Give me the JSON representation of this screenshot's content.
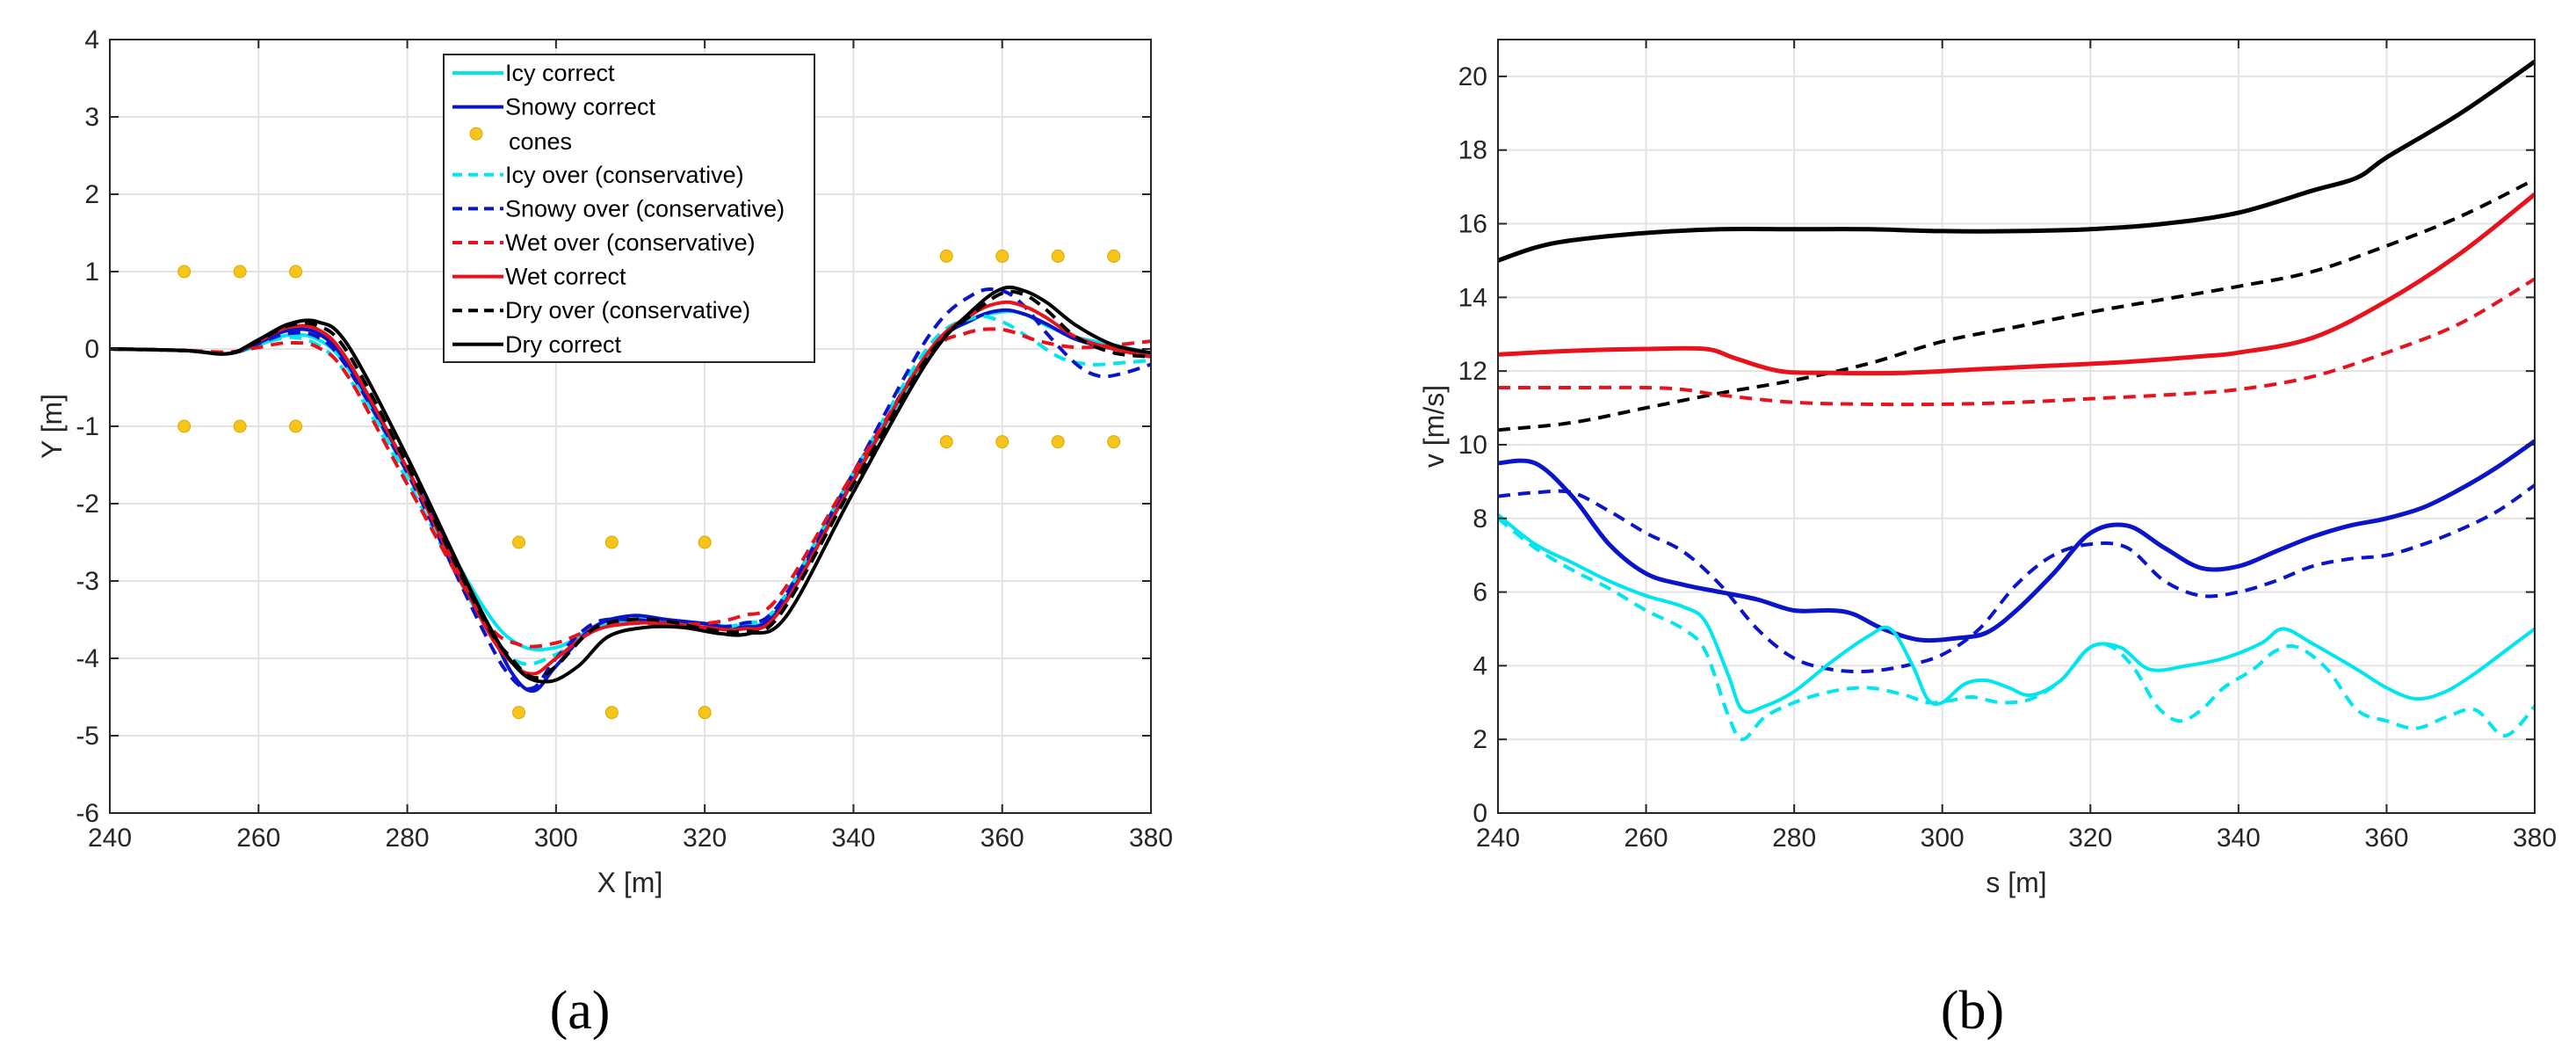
{
  "chart_data": [
    {
      "type": "line",
      "title": "",
      "caption": "(a)",
      "xlabel": "X [m]",
      "ylabel": "Y [m]",
      "xlim": [
        240,
        380
      ],
      "ylim": [
        -6,
        4
      ],
      "xticks": [
        240,
        260,
        280,
        300,
        320,
        340,
        360,
        380
      ],
      "yticks": [
        -6,
        -5,
        -4,
        -3,
        -2,
        -1,
        0,
        1,
        2,
        3,
        4
      ],
      "grid": true,
      "legend_position": "top-center",
      "series": [
        {
          "name": "Icy correct",
          "color": "#00e5ee",
          "dash": "solid",
          "width": 4,
          "x": [
            240,
            250,
            256,
            260,
            264,
            268,
            272,
            280,
            290,
            295,
            300,
            305,
            310,
            315,
            320,
            325,
            330,
            340,
            350,
            355,
            360,
            363,
            366,
            370,
            375,
            380
          ],
          "y": [
            0,
            -0.02,
            -0.06,
            0.05,
            0.18,
            0.12,
            -0.25,
            -1.6,
            -3.3,
            -3.82,
            -3.86,
            -3.62,
            -3.5,
            -3.52,
            -3.55,
            -3.58,
            -3.35,
            -1.7,
            -0.1,
            0.35,
            0.48,
            0.45,
            0.3,
            0.15,
            0.05,
            -0.05
          ]
        },
        {
          "name": "Snowy correct",
          "color": "#0a14c8",
          "dash": "solid",
          "width": 4,
          "x": [
            240,
            250,
            256,
            260,
            264,
            268,
            272,
            280,
            290,
            294,
            297,
            300,
            305,
            310,
            315,
            320,
            325,
            330,
            340,
            350,
            356,
            360,
            363,
            366,
            370,
            375,
            380
          ],
          "y": [
            0,
            -0.02,
            -0.06,
            0.08,
            0.24,
            0.2,
            -0.2,
            -1.55,
            -3.4,
            -4.18,
            -4.42,
            -4.1,
            -3.6,
            -3.45,
            -3.5,
            -3.55,
            -3.6,
            -3.35,
            -1.65,
            -0.05,
            0.38,
            0.5,
            0.45,
            0.32,
            0.12,
            0.0,
            -0.1
          ]
        },
        {
          "name": "cones",
          "color": "#f7c51a",
          "dash": "dots",
          "width": 0,
          "x": [
            250,
            257.5,
            265,
            250,
            257.5,
            265,
            295,
            307.5,
            320,
            295,
            307.5,
            320,
            352.5,
            360,
            367.5,
            375,
            352.5,
            360,
            367.5,
            375
          ],
          "y": [
            1,
            1,
            1,
            -1,
            -1,
            -1,
            -2.5,
            -2.5,
            -2.5,
            -4.7,
            -4.7,
            -4.7,
            1.2,
            1.2,
            1.2,
            1.2,
            -1.2,
            -1.2,
            -1.2,
            -1.2
          ]
        },
        {
          "name": "Icy over (conservative)",
          "color": "#00e5ee",
          "dash": "dashed",
          "width": 4,
          "x": [
            240,
            250,
            256,
            260,
            264,
            268,
            272,
            280,
            290,
            295,
            300,
            305,
            310,
            315,
            320,
            325,
            330,
            340,
            350,
            356,
            360,
            364,
            368,
            372,
            376,
            380
          ],
          "y": [
            0,
            -0.02,
            -0.05,
            0.05,
            0.15,
            0.05,
            -0.35,
            -1.7,
            -3.5,
            -4.05,
            -3.95,
            -3.65,
            -3.52,
            -3.55,
            -3.62,
            -3.55,
            -3.3,
            -1.6,
            0.02,
            0.4,
            0.35,
            0.12,
            -0.12,
            -0.2,
            -0.18,
            -0.15
          ]
        },
        {
          "name": "Snowy over (conservative)",
          "color": "#0a14c8",
          "dash": "dashed",
          "width": 4,
          "x": [
            240,
            250,
            256,
            260,
            264,
            268,
            272,
            280,
            290,
            294,
            297,
            300,
            305,
            310,
            315,
            320,
            325,
            330,
            340,
            350,
            356,
            360,
            363,
            366,
            370,
            373,
            376,
            380
          ],
          "y": [
            0,
            -0.02,
            -0.06,
            0.07,
            0.2,
            0.15,
            -0.25,
            -1.6,
            -3.6,
            -4.25,
            -4.38,
            -4.0,
            -3.55,
            -3.5,
            -3.55,
            -3.6,
            -3.55,
            -3.3,
            -1.6,
            0.15,
            0.7,
            0.75,
            0.55,
            0.2,
            -0.2,
            -0.35,
            -0.32,
            -0.2
          ]
        },
        {
          "name": "Wet over (conservative)",
          "color": "#e8121c",
          "dash": "dashed",
          "width": 4,
          "x": [
            240,
            250,
            256,
            260,
            264,
            268,
            272,
            280,
            290,
            295,
            300,
            305,
            310,
            315,
            320,
            325,
            330,
            340,
            350,
            355,
            360,
            365,
            370,
            375,
            380
          ],
          "y": [
            0,
            -0.02,
            -0.04,
            0.02,
            0.08,
            0.02,
            -0.35,
            -1.75,
            -3.45,
            -3.82,
            -3.8,
            -3.62,
            -3.55,
            -3.55,
            -3.55,
            -3.45,
            -3.2,
            -1.6,
            -0.1,
            0.2,
            0.25,
            0.1,
            0.02,
            0.05,
            0.1
          ]
        },
        {
          "name": "Wet correct",
          "color": "#e8121c",
          "dash": "solid",
          "width": 4,
          "x": [
            240,
            250,
            256,
            260,
            264,
            268,
            272,
            280,
            290,
            294,
            297,
            300,
            305,
            310,
            315,
            320,
            325,
            330,
            340,
            350,
            356,
            360,
            363,
            366,
            370,
            375,
            380
          ],
          "y": [
            0,
            -0.02,
            -0.06,
            0.1,
            0.28,
            0.25,
            -0.15,
            -1.55,
            -3.5,
            -4.05,
            -4.2,
            -4.0,
            -3.65,
            -3.55,
            -3.55,
            -3.6,
            -3.62,
            -3.4,
            -1.7,
            -0.05,
            0.45,
            0.6,
            0.55,
            0.4,
            0.15,
            0.0,
            -0.1
          ]
        },
        {
          "name": "Dry over (conservative)",
          "color": "#000000",
          "dash": "dashed",
          "width": 4,
          "x": [
            240,
            250,
            256,
            260,
            264,
            268,
            272,
            280,
            290,
            294,
            297,
            300,
            305,
            310,
            315,
            320,
            325,
            330,
            340,
            350,
            356,
            360,
            363,
            366,
            370,
            375,
            380
          ],
          "y": [
            0,
            -0.02,
            -0.06,
            0.1,
            0.3,
            0.3,
            -0.05,
            -1.5,
            -3.45,
            -4.0,
            -4.25,
            -4.1,
            -3.62,
            -3.5,
            -3.52,
            -3.62,
            -3.65,
            -3.45,
            -1.75,
            -0.1,
            0.45,
            0.72,
            0.7,
            0.5,
            0.15,
            -0.05,
            -0.1
          ]
        },
        {
          "name": "Dry correct",
          "color": "#000000",
          "dash": "solid",
          "width": 4,
          "x": [
            240,
            250,
            256,
            260,
            264,
            268,
            272,
            280,
            290,
            295,
            299,
            303,
            307,
            312,
            317,
            322,
            326,
            331,
            340,
            350,
            356,
            360,
            363,
            366,
            370,
            375,
            380
          ],
          "y": [
            0,
            -0.02,
            -0.06,
            0.12,
            0.32,
            0.35,
            0.05,
            -1.4,
            -3.4,
            -4.15,
            -4.3,
            -4.1,
            -3.72,
            -3.6,
            -3.6,
            -3.68,
            -3.68,
            -3.45,
            -1.85,
            -0.15,
            0.5,
            0.78,
            0.75,
            0.6,
            0.3,
            0.05,
            -0.05
          ]
        }
      ]
    },
    {
      "type": "line",
      "title": "",
      "caption": "(b)",
      "xlabel": "s [m]",
      "ylabel": "v [m/s]",
      "xlim": [
        240,
        380
      ],
      "ylim": [
        0,
        21
      ],
      "xticks": [
        240,
        260,
        280,
        300,
        320,
        340,
        360,
        380
      ],
      "yticks": [
        0,
        2,
        4,
        6,
        8,
        10,
        12,
        14,
        16,
        18,
        20
      ],
      "grid": true,
      "legend_position": "none",
      "series": [
        {
          "name": "Dry correct",
          "color": "#000000",
          "dash": "solid",
          "width": 5,
          "x": [
            240,
            245,
            250,
            260,
            270,
            280,
            290,
            300,
            310,
            320,
            330,
            340,
            350,
            356,
            360,
            370,
            380
          ],
          "y": [
            15.0,
            15.35,
            15.55,
            15.75,
            15.85,
            15.85,
            15.85,
            15.8,
            15.8,
            15.85,
            16.0,
            16.3,
            16.9,
            17.25,
            17.8,
            19.0,
            20.4
          ]
        },
        {
          "name": "Dry over (conservative)",
          "color": "#000000",
          "dash": "dashed",
          "width": 4,
          "x": [
            240,
            250,
            260,
            270,
            280,
            290,
            300,
            310,
            320,
            330,
            340,
            350,
            360,
            370,
            380
          ],
          "y": [
            10.4,
            10.6,
            11.0,
            11.4,
            11.75,
            12.2,
            12.8,
            13.2,
            13.6,
            13.95,
            14.3,
            14.7,
            15.4,
            16.2,
            17.2
          ]
        },
        {
          "name": "Wet correct",
          "color": "#e8121c",
          "dash": "solid",
          "width": 5,
          "x": [
            240,
            250,
            260,
            268,
            272,
            278,
            285,
            295,
            305,
            315,
            325,
            335,
            340,
            350,
            360,
            370,
            380
          ],
          "y": [
            12.45,
            12.55,
            12.6,
            12.6,
            12.35,
            12.0,
            11.95,
            11.95,
            12.05,
            12.15,
            12.25,
            12.4,
            12.5,
            12.9,
            13.9,
            15.2,
            16.8
          ]
        },
        {
          "name": "Wet over (conservative)",
          "color": "#e8121c",
          "dash": "dashed",
          "width": 4,
          "x": [
            240,
            250,
            260,
            265,
            270,
            280,
            290,
            300,
            310,
            320,
            330,
            340,
            350,
            360,
            370,
            380
          ],
          "y": [
            11.55,
            11.55,
            11.55,
            11.5,
            11.35,
            11.15,
            11.1,
            11.1,
            11.15,
            11.25,
            11.35,
            11.5,
            11.85,
            12.5,
            13.3,
            14.5
          ]
        },
        {
          "name": "Snowy correct",
          "color": "#0a14c8",
          "dash": "solid",
          "width": 5,
          "x": [
            240,
            245,
            250,
            255,
            260,
            265,
            270,
            275,
            280,
            285,
            288,
            292,
            297,
            302,
            306,
            310,
            315,
            320,
            325,
            330,
            335,
            340,
            345,
            350,
            355,
            360,
            365,
            370,
            375,
            380
          ],
          "y": [
            9.5,
            9.5,
            8.6,
            7.3,
            6.5,
            6.2,
            6.0,
            5.8,
            5.5,
            5.5,
            5.4,
            5.0,
            4.7,
            4.75,
            4.9,
            5.5,
            6.5,
            7.6,
            7.8,
            7.2,
            6.65,
            6.7,
            7.1,
            7.5,
            7.8,
            8.0,
            8.3,
            8.8,
            9.4,
            10.1
          ]
        },
        {
          "name": "Snowy over (conservative)",
          "color": "#0a14c8",
          "dash": "dashed",
          "width": 4,
          "x": [
            240,
            245,
            250,
            255,
            260,
            265,
            270,
            275,
            280,
            285,
            290,
            295,
            300,
            305,
            310,
            315,
            320,
            325,
            330,
            335,
            340,
            345,
            350,
            355,
            360,
            365,
            370,
            375,
            380
          ],
          "y": [
            8.6,
            8.7,
            8.7,
            8.2,
            7.6,
            7.1,
            6.2,
            5.0,
            4.2,
            3.9,
            3.85,
            4.0,
            4.3,
            5.0,
            6.2,
            7.0,
            7.3,
            7.2,
            6.3,
            5.9,
            6.0,
            6.3,
            6.7,
            6.9,
            7.0,
            7.3,
            7.7,
            8.2,
            8.9
          ]
        },
        {
          "name": "Icy correct",
          "color": "#00e5ee",
          "dash": "solid",
          "width": 4,
          "x": [
            240,
            245,
            250,
            255,
            260,
            265,
            268,
            271,
            273,
            276,
            280,
            285,
            290,
            293,
            296,
            298,
            300,
            303,
            306,
            309,
            312,
            316,
            320,
            324,
            328,
            333,
            338,
            343,
            346,
            350,
            356,
            360,
            364,
            368,
            372,
            376,
            380
          ],
          "y": [
            8.1,
            7.3,
            6.8,
            6.3,
            5.9,
            5.6,
            5.2,
            3.8,
            2.8,
            2.9,
            3.3,
            4.1,
            4.8,
            5.0,
            4.0,
            3.1,
            3.0,
            3.5,
            3.6,
            3.4,
            3.2,
            3.6,
            4.5,
            4.5,
            3.9,
            4.0,
            4.2,
            4.6,
            5.0,
            4.6,
            3.9,
            3.4,
            3.1,
            3.3,
            3.8,
            4.4,
            5.0
          ]
        },
        {
          "name": "Icy over (conservative)",
          "color": "#00e5ee",
          "dash": "dashed",
          "width": 4,
          "x": [
            240,
            245,
            250,
            255,
            260,
            265,
            268,
            271,
            273,
            276,
            280,
            285,
            290,
            295,
            298,
            301,
            304,
            308,
            312,
            316,
            320,
            323,
            326,
            329,
            332,
            335,
            338,
            342,
            345,
            348,
            352,
            356,
            360,
            364,
            368,
            372,
            376,
            380
          ],
          "y": [
            8.0,
            7.2,
            6.6,
            6.1,
            5.5,
            5.0,
            4.4,
            2.7,
            2.0,
            2.6,
            3.0,
            3.3,
            3.4,
            3.2,
            3.0,
            3.05,
            3.15,
            3.0,
            3.1,
            3.6,
            4.5,
            4.5,
            3.9,
            2.9,
            2.5,
            2.8,
            3.4,
            3.9,
            4.4,
            4.5,
            3.9,
            2.8,
            2.5,
            2.3,
            2.6,
            2.8,
            2.1,
            2.9
          ]
        }
      ]
    }
  ]
}
